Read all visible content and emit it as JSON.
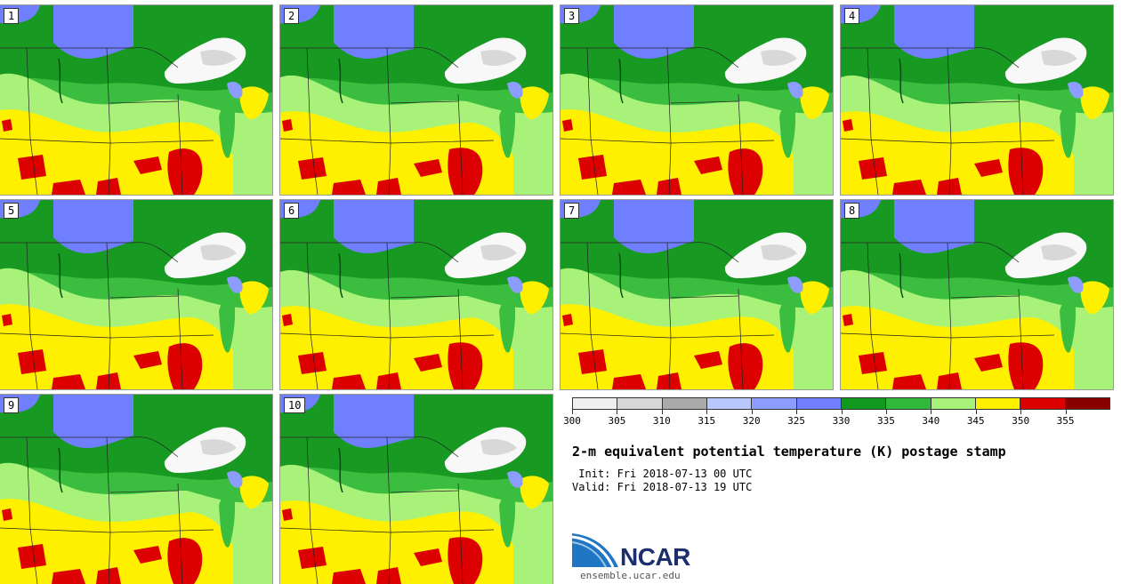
{
  "panels": [
    "1",
    "2",
    "3",
    "4",
    "5",
    "6",
    "7",
    "8",
    "9",
    "10"
  ],
  "colorbar": {
    "ticks": [
      "300",
      "305",
      "310",
      "315",
      "320",
      "325",
      "330",
      "335",
      "340",
      "345",
      "350",
      "355"
    ],
    "colors": [
      "#efefef",
      "#d8d8d8",
      "#aaaaaa",
      "#b8c8ff",
      "#8c9cff",
      "#6f7fff",
      "#129a1e",
      "#2fb83a",
      "#a8f27a",
      "#fff000",
      "#dd0000",
      "#8a0000"
    ]
  },
  "title": "2-m equivalent potential temperature (K) postage stamp",
  "init": " Init: Fri 2018-07-13 00 UTC",
  "valid": "Valid: Fri 2018-07-13 19 UTC",
  "logo": {
    "name": "NCAR",
    "website": "ensemble.ucar.edu"
  }
}
